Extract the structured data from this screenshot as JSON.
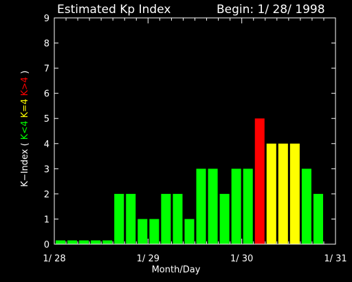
{
  "header": {
    "title": "Estimated Kp Index",
    "begin": "Begin: 1/ 28/ 1998"
  },
  "colors": {
    "low": "#00ff00",
    "storm_threshold": "#ffff00",
    "storm": "#ff0000",
    "axis": "#ffffff",
    "background": "#000000"
  },
  "legend": {
    "prefix": "K−Index ( ",
    "low": "K<4",
    "eq": "K=4",
    "high": "K>4",
    "suffix": " )"
  },
  "chart_data": {
    "type": "bar",
    "title": "Estimated Kp Index",
    "xlabel": "Month/Day",
    "ylabel": "K−Index ( K<4 K=4 K>4 )",
    "ylim": [
      0,
      9
    ],
    "yticks": [
      "0",
      "1",
      "2",
      "3",
      "4",
      "5",
      "6",
      "7",
      "8",
      "9"
    ],
    "xlim": [
      0,
      24
    ],
    "xticks": [
      {
        "label": "1/ 28",
        "value": 0
      },
      {
        "label": "1/ 29",
        "value": 8
      },
      {
        "label": "1/ 30",
        "value": 16
      },
      {
        "label": "1/ 31",
        "value": 24
      }
    ],
    "bin_hours": 3,
    "values": [
      0.15,
      0.15,
      0.15,
      0.15,
      0.15,
      2,
      2,
      1,
      1,
      2,
      2,
      1,
      3,
      3,
      2,
      3,
      3,
      5,
      4,
      4,
      4,
      3,
      2
    ]
  }
}
